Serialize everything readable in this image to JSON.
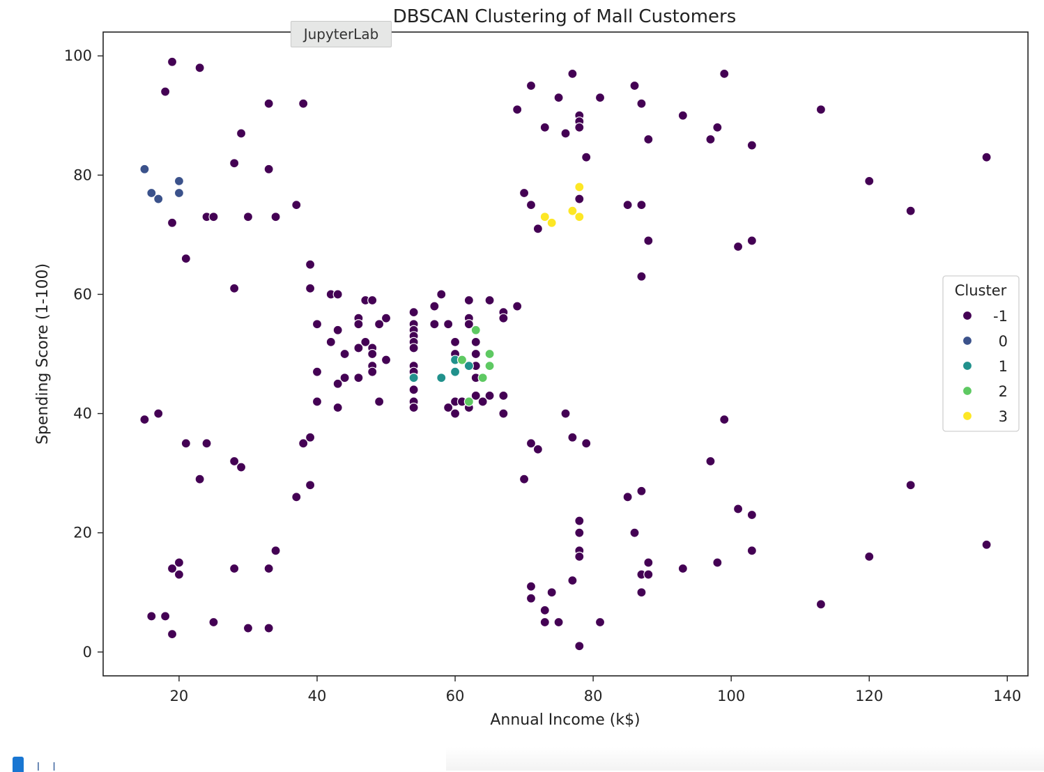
{
  "tooltip": {
    "label": "JupyterLab"
  },
  "cell": {
    "prompt": "[ ]"
  },
  "chart_data": {
    "type": "scatter",
    "title": "DBSCAN Clustering of Mall Customers",
    "xlabel": "Annual Income (k$)",
    "ylabel": "Spending Score (1-100)",
    "xlim": [
      9,
      143
    ],
    "ylim": [
      -4,
      104
    ],
    "xticks": [
      20,
      40,
      60,
      80,
      100,
      120,
      140
    ],
    "yticks": [
      0,
      20,
      40,
      60,
      80,
      100
    ],
    "grid": false,
    "legend": {
      "title": "Cluster",
      "position": "center-right"
    },
    "colors": {
      "-1": "#440154",
      "0": "#3b528b",
      "1": "#21918c",
      "2": "#5ec962",
      "3": "#fde725"
    },
    "series": [
      {
        "name": "-1",
        "color": "#440154",
        "points": [
          [
            19,
            99
          ],
          [
            23,
            98
          ],
          [
            18,
            94
          ],
          [
            33,
            92
          ],
          [
            38,
            92
          ],
          [
            29,
            87
          ],
          [
            28,
            82
          ],
          [
            33,
            81
          ],
          [
            19,
            72
          ],
          [
            24,
            73
          ],
          [
            25,
            73
          ],
          [
            30,
            73
          ],
          [
            34,
            73
          ],
          [
            37,
            75
          ],
          [
            21,
            66
          ],
          [
            28,
            61
          ],
          [
            39,
            65
          ],
          [
            39,
            61
          ],
          [
            42,
            60
          ],
          [
            43,
            60
          ],
          [
            47,
            59
          ],
          [
            48,
            59
          ],
          [
            58,
            60
          ],
          [
            57,
            58
          ],
          [
            62,
            59
          ],
          [
            65,
            59
          ],
          [
            69,
            58
          ],
          [
            67,
            57
          ],
          [
            67,
            56
          ],
          [
            54,
            57
          ],
          [
            54,
            55
          ],
          [
            54,
            54
          ],
          [
            54,
            53
          ],
          [
            54,
            52
          ],
          [
            54,
            51
          ],
          [
            57,
            55
          ],
          [
            59,
            55
          ],
          [
            62,
            56
          ],
          [
            62,
            55
          ],
          [
            63,
            52
          ],
          [
            63,
            50
          ],
          [
            63,
            48
          ],
          [
            63,
            46
          ],
          [
            63,
            43
          ],
          [
            60,
            52
          ],
          [
            60,
            50
          ],
          [
            64,
            42
          ],
          [
            65,
            43
          ],
          [
            67,
            43
          ],
          [
            67,
            40
          ],
          [
            62,
            41
          ],
          [
            60,
            42
          ],
          [
            61,
            42
          ],
          [
            59,
            41
          ],
          [
            60,
            40
          ],
          [
            54,
            48
          ],
          [
            54,
            47
          ],
          [
            54,
            44
          ],
          [
            54,
            42
          ],
          [
            54,
            41
          ],
          [
            50,
            56
          ],
          [
            49,
            55
          ],
          [
            46,
            56
          ],
          [
            46,
            55
          ],
          [
            43,
            54
          ],
          [
            40,
            55
          ],
          [
            42,
            52
          ],
          [
            44,
            50
          ],
          [
            47,
            52
          ],
          [
            46,
            51
          ],
          [
            48,
            51
          ],
          [
            48,
            50
          ],
          [
            48,
            48
          ],
          [
            48,
            47
          ],
          [
            50,
            49
          ],
          [
            40,
            47
          ],
          [
            43,
            45
          ],
          [
            44,
            46
          ],
          [
            46,
            46
          ],
          [
            40,
            42
          ],
          [
            43,
            41
          ],
          [
            49,
            42
          ],
          [
            15,
            39
          ],
          [
            17,
            40
          ],
          [
            21,
            35
          ],
          [
            24,
            35
          ],
          [
            28,
            32
          ],
          [
            29,
            31
          ],
          [
            23,
            29
          ],
          [
            37,
            26
          ],
          [
            38,
            35
          ],
          [
            39,
            36
          ],
          [
            39,
            28
          ],
          [
            19,
            14
          ],
          [
            20,
            15
          ],
          [
            20,
            13
          ],
          [
            28,
            14
          ],
          [
            33,
            14
          ],
          [
            34,
            17
          ],
          [
            16,
            6
          ],
          [
            18,
            6
          ],
          [
            19,
            3
          ],
          [
            25,
            5
          ],
          [
            30,
            4
          ],
          [
            33,
            4
          ],
          [
            77,
            97
          ],
          [
            71,
            95
          ],
          [
            75,
            93
          ],
          [
            81,
            93
          ],
          [
            69,
            91
          ],
          [
            73,
            88
          ],
          [
            76,
            87
          ],
          [
            78,
            90
          ],
          [
            78,
            89
          ],
          [
            78,
            88
          ],
          [
            79,
            83
          ],
          [
            86,
            95
          ],
          [
            87,
            92
          ],
          [
            88,
            86
          ],
          [
            93,
            90
          ],
          [
            97,
            86
          ],
          [
            98,
            88
          ],
          [
            99,
            97
          ],
          [
            103,
            85
          ],
          [
            113,
            91
          ],
          [
            137,
            83
          ],
          [
            120,
            79
          ],
          [
            126,
            74
          ],
          [
            70,
            77
          ],
          [
            71,
            75
          ],
          [
            72,
            71
          ],
          [
            78,
            76
          ],
          [
            85,
            75
          ],
          [
            87,
            75
          ],
          [
            88,
            69
          ],
          [
            87,
            63
          ],
          [
            101,
            68
          ],
          [
            103,
            69
          ],
          [
            76,
            40
          ],
          [
            71,
            35
          ],
          [
            72,
            34
          ],
          [
            77,
            36
          ],
          [
            79,
            35
          ],
          [
            70,
            29
          ],
          [
            99,
            39
          ],
          [
            97,
            32
          ],
          [
            85,
            26
          ],
          [
            87,
            27
          ],
          [
            101,
            24
          ],
          [
            103,
            23
          ],
          [
            126,
            28
          ],
          [
            137,
            18
          ],
          [
            78,
            22
          ],
          [
            78,
            20
          ],
          [
            86,
            20
          ],
          [
            78,
            17
          ],
          [
            78,
            16
          ],
          [
            88,
            15
          ],
          [
            87,
            13
          ],
          [
            88,
            13
          ],
          [
            93,
            14
          ],
          [
            98,
            15
          ],
          [
            103,
            17
          ],
          [
            120,
            16
          ],
          [
            77,
            12
          ],
          [
            71,
            11
          ],
          [
            71,
            9
          ],
          [
            74,
            10
          ],
          [
            87,
            10
          ],
          [
            73,
            7
          ],
          [
            73,
            5
          ],
          [
            75,
            5
          ],
          [
            81,
            5
          ],
          [
            78,
            1
          ],
          [
            113,
            8
          ]
        ]
      },
      {
        "name": "0",
        "color": "#3b528b",
        "points": [
          [
            15,
            81
          ],
          [
            16,
            77
          ],
          [
            17,
            76
          ],
          [
            20,
            79
          ],
          [
            20,
            77
          ]
        ]
      },
      {
        "name": "1",
        "color": "#21918c",
        "points": [
          [
            54,
            46
          ],
          [
            58,
            46
          ],
          [
            60,
            47
          ],
          [
            60,
            49
          ],
          [
            62,
            48
          ]
        ]
      },
      {
        "name": "2",
        "color": "#5ec962",
        "points": [
          [
            61,
            49
          ],
          [
            63,
            54
          ],
          [
            64,
            46
          ],
          [
            65,
            50
          ],
          [
            65,
            48
          ],
          [
            62,
            42
          ]
        ]
      },
      {
        "name": "3",
        "color": "#fde725",
        "points": [
          [
            73,
            73
          ],
          [
            74,
            72
          ],
          [
            77,
            74
          ],
          [
            78,
            78
          ],
          [
            78,
            73
          ]
        ]
      }
    ]
  }
}
